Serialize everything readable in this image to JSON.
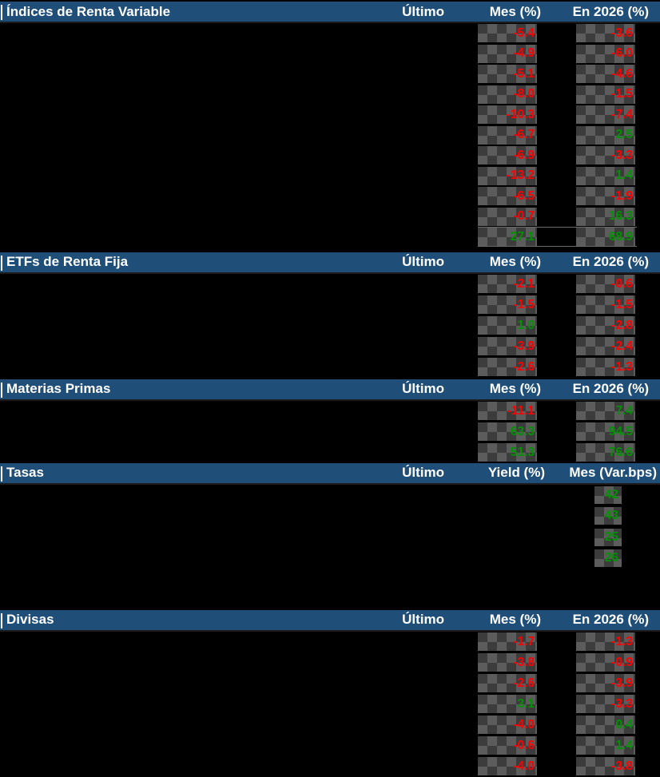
{
  "colors": {
    "background": "#000000",
    "header_bg": "#1F4E79",
    "header_text": "#FFFFFF",
    "negative": "#FF0000",
    "positive": "#009300",
    "chip_dark": "#3C3C3C",
    "chip_light": "#5C5C5C"
  },
  "chart_data": [
    {
      "type": "table",
      "id": "indices-renta-variable",
      "title": "Índices de Renta Variable",
      "columns": [
        "Último",
        "Mes (%)",
        "En 2026 (%)"
      ],
      "rows": [
        {
          "mes": "-5.4",
          "en": "-3.6"
        },
        {
          "mes": "-4.9",
          "en": "-6.0"
        },
        {
          "mes": "-5.1",
          "en": "-4.6"
        },
        {
          "mes": "-8.0",
          "en": "-1.5"
        },
        {
          "mes": "-10.3",
          "en": "-7.4"
        },
        {
          "mes": "-6.7",
          "en": "2.5"
        },
        {
          "mes": "-6.9",
          "en": "-3.3"
        },
        {
          "mes": "-13.2",
          "en": "1.4"
        },
        {
          "mes": "-6.5",
          "en": "-1.9"
        },
        {
          "mes": "-0.7",
          "en": "16.3"
        },
        {
          "mes": "27.1",
          "en": "68.9"
        }
      ]
    },
    {
      "type": "table",
      "id": "etfs-renta-fija",
      "title": "ETFs de Renta Fija",
      "columns": [
        "Último",
        "Mes (%)",
        "En 2026 (%)"
      ],
      "rows": [
        {
          "mes": "-2.1",
          "en": "-0.6"
        },
        {
          "mes": "-1.5",
          "en": "-1.5"
        },
        {
          "mes": "1.0",
          "en": "-2.8"
        },
        {
          "mes": "-3.9",
          "en": "-2.4"
        },
        {
          "mes": "-2.6",
          "en": "-1.3"
        }
      ]
    },
    {
      "type": "table",
      "id": "materias-primas",
      "title": "Materias Primas",
      "columns": [
        "Último",
        "Mes (%)",
        "En 2026 (%)"
      ],
      "rows": [
        {
          "mes": "-11.1",
          "en": "7.4"
        },
        {
          "mes": "63.3",
          "en": "94.5"
        },
        {
          "mes": "51.3",
          "en": "76.6"
        }
      ]
    },
    {
      "type": "table",
      "id": "tasas",
      "title": "Tasas",
      "columns": [
        "Último",
        "Yield (%)",
        "Mes (Var.bps)"
      ],
      "rows": [
        {
          "var": "42"
        },
        {
          "var": "43"
        },
        {
          "var": "25"
        },
        {
          "var": "26"
        }
      ]
    },
    {
      "type": "table",
      "id": "divisas",
      "title": "Divisas",
      "columns": [
        "Último",
        "Mes (%)",
        "En 2026 (%)"
      ],
      "rows": [
        {
          "mes": "-1.7",
          "en": "-1.3"
        },
        {
          "mes": "-3.8",
          "en": "-0.9"
        },
        {
          "mes": "-2.6",
          "en": "-3.9"
        },
        {
          "mes": "3.1",
          "en": "-3.3"
        },
        {
          "mes": "-4.0",
          "en": "0.4"
        },
        {
          "mes": "-0.6",
          "en": "1.4"
        },
        {
          "mes": "-4.0",
          "en": "-3.8"
        }
      ]
    }
  ]
}
